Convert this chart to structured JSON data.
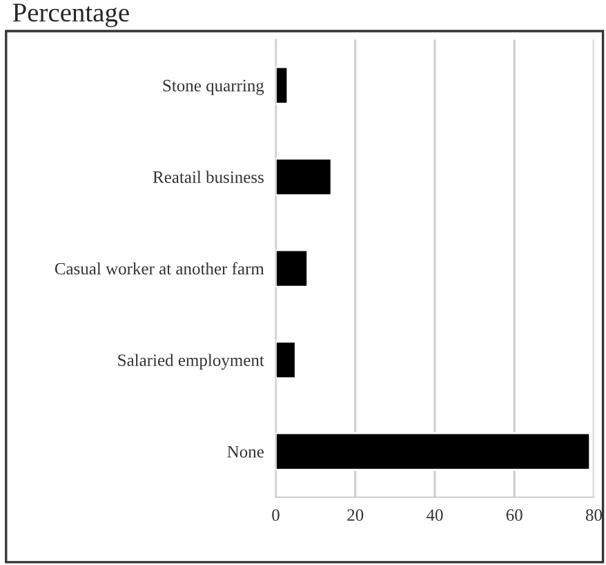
{
  "chart_data": {
    "type": "bar",
    "orientation": "horizontal",
    "title": "Percentage",
    "categories": [
      "Stone quarring",
      "Reatail business",
      "Casual worker at another farm",
      "Salaried employment",
      "None"
    ],
    "values": [
      3,
      14,
      8,
      5,
      79
    ],
    "color": "#000000",
    "xlim": [
      0,
      80
    ],
    "xticks": [
      0,
      20,
      40,
      60,
      80
    ],
    "grid": "x",
    "legend": false
  }
}
